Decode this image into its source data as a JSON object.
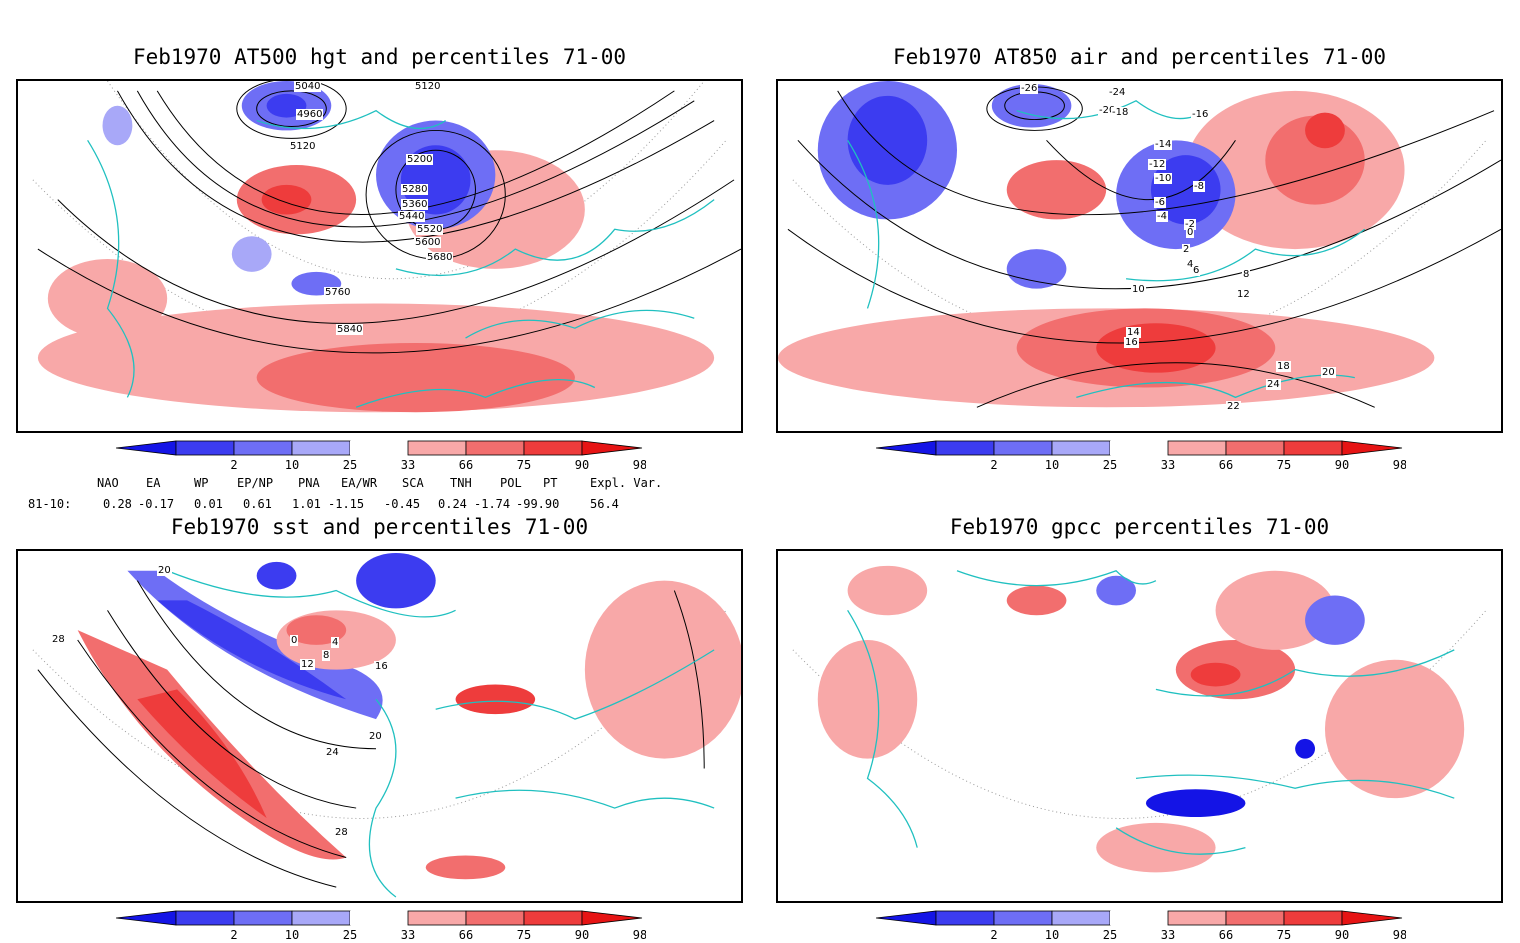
{
  "panels": [
    {
      "title": "Feb1970 AT500 hgt and percentiles 71-00",
      "contour_labels": [
        "5040",
        "5120",
        "4960",
        "5120",
        "5200",
        "5280",
        "5360",
        "5440",
        "5520",
        "5600",
        "5680",
        "5760",
        "5840"
      ]
    },
    {
      "title": "Feb1970 AT850 air and percentiles 71-00",
      "contour_labels": [
        "-26",
        "-24",
        "-20",
        "-18",
        "-16",
        "-14",
        "-12",
        "-10",
        "-8",
        "-6",
        "-4",
        "-2",
        "0",
        "2",
        "4",
        "6",
        "8",
        "10",
        "12",
        "14",
        "16",
        "18",
        "20",
        "22",
        "24"
      ]
    },
    {
      "title": "Feb1970 sst and percentiles 71-00",
      "contour_labels": [
        "20",
        "28",
        "0",
        "4",
        "8",
        "12",
        "16",
        "20",
        "24",
        "28"
      ]
    },
    {
      "title": "Feb1970 gpcc percentiles 71-00",
      "contour_labels": []
    }
  ],
  "colorbar": {
    "labels": [
      "2",
      "10",
      "25",
      "33",
      "66",
      "75",
      "90",
      "98"
    ],
    "colors": [
      "#1414e6",
      "#3c3cf0",
      "#6e6ef5",
      "#a8a8f8",
      "#ffffff",
      "#f8a8a8",
      "#f26e6e",
      "#ee3c3c",
      "#e61414"
    ]
  },
  "teleconnections": {
    "headers": [
      "NAO",
      "EA",
      "WP",
      "EP/NP",
      "PNA",
      "EA/WR",
      "SCA",
      "TNH",
      "POL",
      "PT",
      "Expl. Var."
    ],
    "row_label": "81-10:",
    "values": [
      "0.28",
      "-0.17",
      "0.01",
      "0.61",
      "1.01",
      "-1.15",
      "-0.45",
      "0.24",
      "-1.74",
      "-99.90",
      "56.4"
    ]
  }
}
